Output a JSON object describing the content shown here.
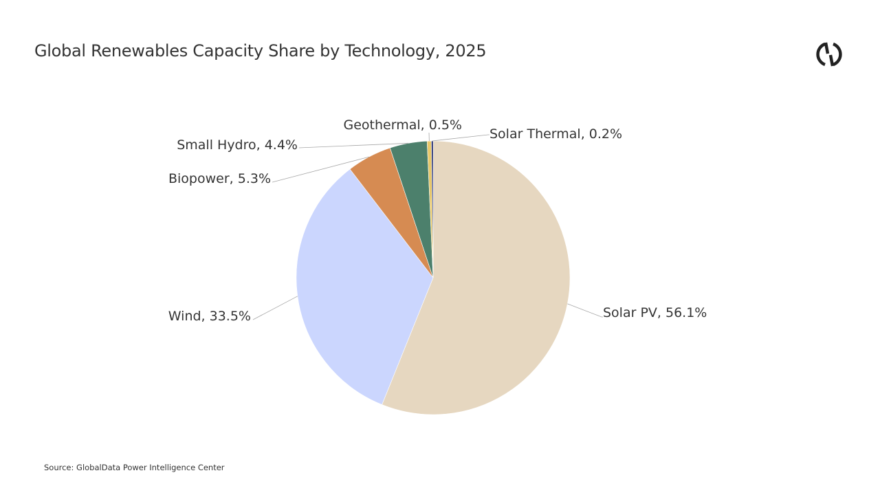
{
  "title": "Global Renewables Capacity Share by Technology, 2025",
  "source": "Source: GlobalData Power Intelligence Center",
  "logo_icon": "globaldata-logo-icon",
  "chart_data": {
    "type": "pie",
    "title": "Global Renewables Capacity Share by Technology, 2025",
    "unit": "%",
    "start": "12 o'clock, clockwise",
    "slices": [
      {
        "name": "Solar PV",
        "value": 56.1,
        "label": "Solar PV, 56.1%",
        "color": "#e6d7c0"
      },
      {
        "name": "Wind",
        "value": 33.5,
        "label": "Wind, 33.5%",
        "color": "#cbd6fe"
      },
      {
        "name": "Biopower",
        "value": 5.3,
        "label": "Biopower, 5.3%",
        "color": "#d68b52"
      },
      {
        "name": "Small Hydro",
        "value": 4.4,
        "label": "Small Hydro, 4.4%",
        "color": "#4c806c"
      },
      {
        "name": "Geothermal",
        "value": 0.5,
        "label": "Geothermal, 0.5%",
        "color": "#e8c86a"
      },
      {
        "name": "Solar Thermal",
        "value": 0.2,
        "label": "Solar Thermal, 0.2%",
        "color": "#14206a"
      }
    ]
  }
}
